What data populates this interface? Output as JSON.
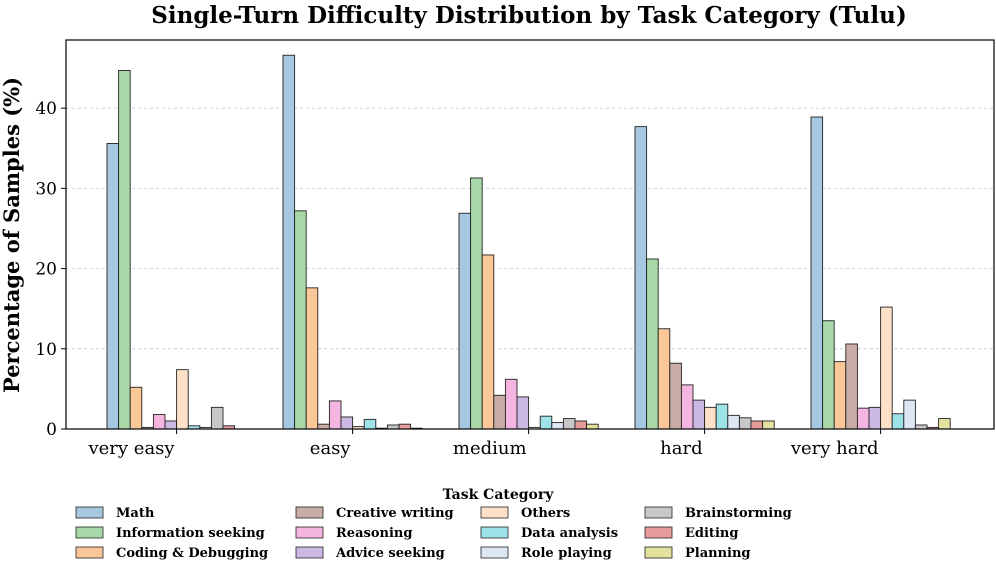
{
  "chart_data": {
    "type": "bar",
    "title": "Single-Turn Difficulty Distribution by Task Category (Tulu)",
    "xlabel": "",
    "ylabel": "Percentage of Samples (%)",
    "ylim": [
      0,
      48.5
    ],
    "yticks": [
      0,
      10,
      20,
      30,
      40
    ],
    "grid": true,
    "legend_title": "Task Category",
    "legend_position": "bottom",
    "categories": [
      "very easy",
      "easy",
      "medium",
      "hard",
      "very hard"
    ],
    "series": [
      {
        "name": "Math",
        "color": "#a6c8e0",
        "values": [
          35.6,
          46.6,
          26.9,
          37.7,
          38.9
        ]
      },
      {
        "name": "Information seeking",
        "color": "#a8d8a8",
        "values": [
          44.7,
          27.2,
          31.3,
          21.2,
          13.5
        ]
      },
      {
        "name": "Coding & Debugging",
        "color": "#fbc798",
        "values": [
          5.2,
          17.6,
          21.7,
          12.5,
          8.4
        ]
      },
      {
        "name": "Creative writing",
        "color": "#c9ada6",
        "values": [
          0.2,
          0.6,
          4.2,
          8.2,
          10.6
        ]
      },
      {
        "name": "Reasoning",
        "color": "#f4b6e0",
        "values": [
          1.8,
          3.5,
          6.2,
          5.5,
          2.6
        ]
      },
      {
        "name": "Advice seeking",
        "color": "#cbb9e3",
        "values": [
          1.0,
          1.5,
          4.0,
          3.6,
          2.7
        ]
      },
      {
        "name": "Others",
        "color": "#fde0c6",
        "values": [
          7.4,
          0.3,
          0.2,
          2.7,
          15.2
        ]
      },
      {
        "name": "Data analysis",
        "color": "#9ee2ea",
        "values": [
          0.4,
          1.2,
          1.6,
          3.1,
          1.9
        ]
      },
      {
        "name": "Role playing",
        "color": "#dde7f4",
        "values": [
          0.2,
          0.1,
          0.8,
          1.7,
          3.6
        ]
      },
      {
        "name": "Brainstorming",
        "color": "#c7c7c7",
        "values": [
          2.7,
          0.5,
          1.3,
          1.4,
          0.5
        ]
      },
      {
        "name": "Editing",
        "color": "#e79a9a",
        "values": [
          0.4,
          0.6,
          1.0,
          1.0,
          0.2
        ]
      },
      {
        "name": "Planning",
        "color": "#e2e29e",
        "values": [
          0.0,
          0.1,
          0.6,
          1.0,
          1.3
        ]
      }
    ]
  }
}
